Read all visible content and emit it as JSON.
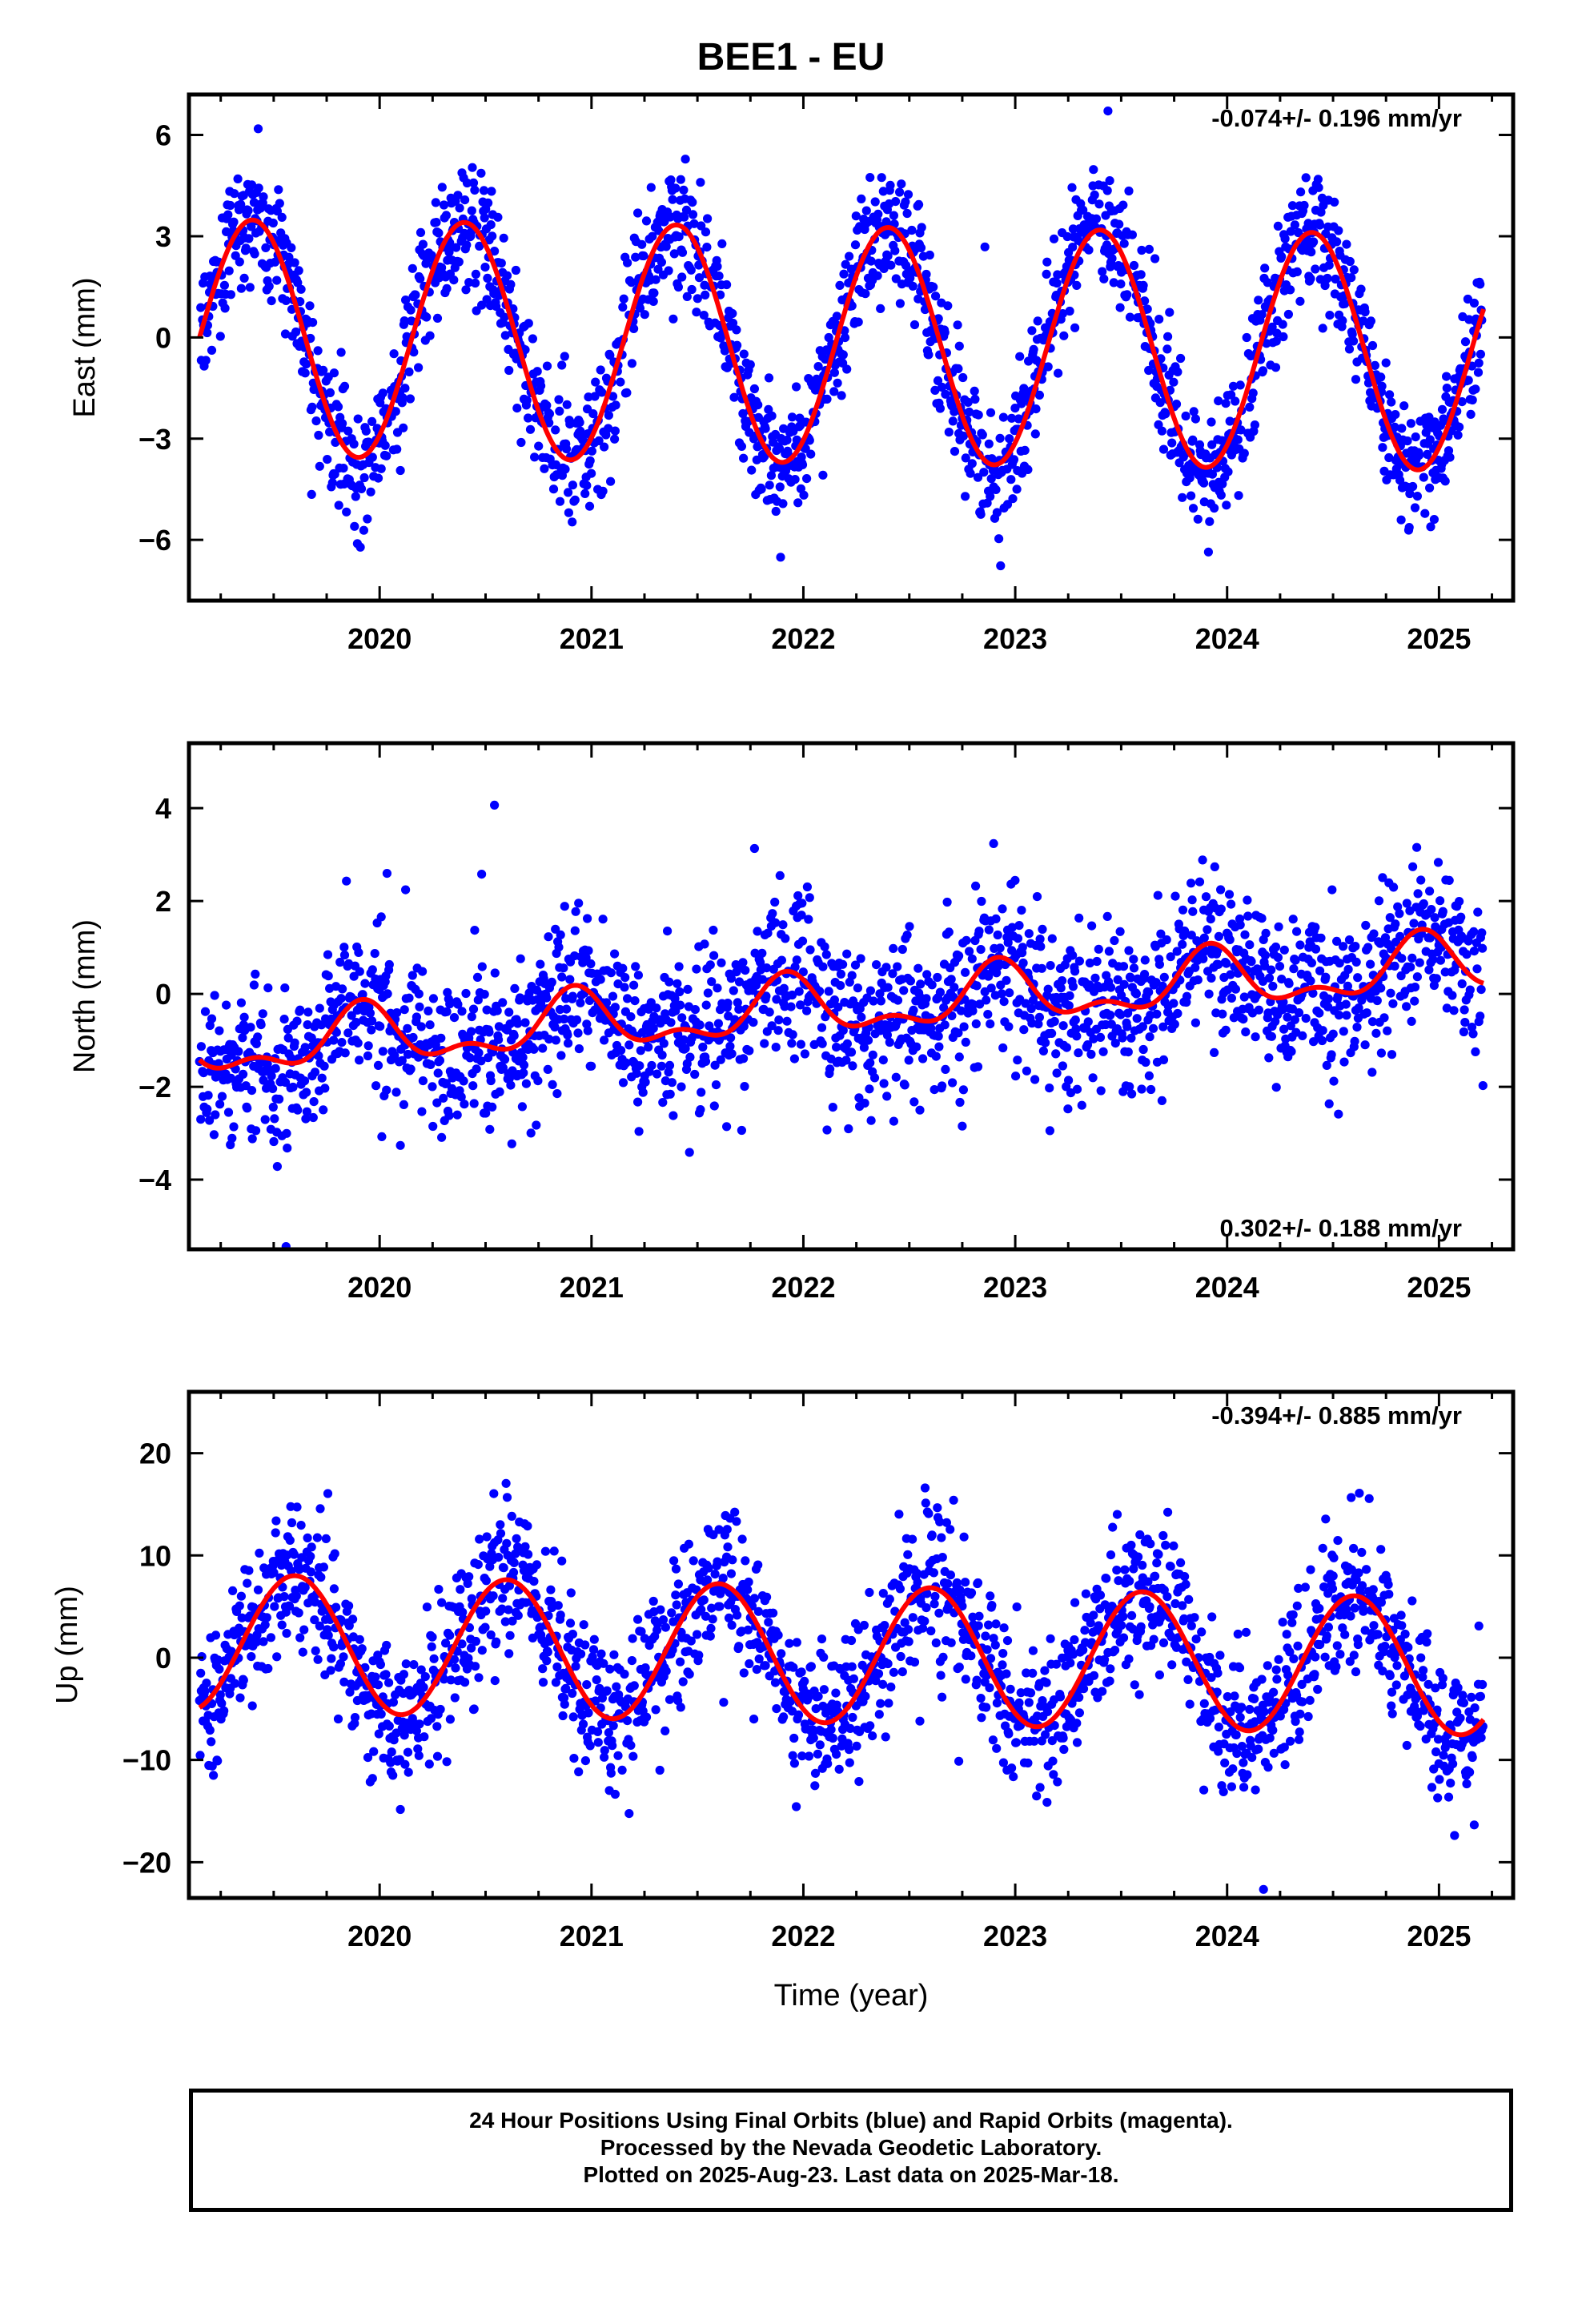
{
  "title": "BEE1 - EU",
  "colors": {
    "points": "#0000ff",
    "fit": "#ff0000",
    "axis": "#000000"
  },
  "chart_data": [
    {
      "type": "scatter",
      "name": "east",
      "xlabel": "",
      "ylabel": "East (mm)",
      "rate_label": "-0.074+/- 0.196 mm/yr",
      "rate_position": "top-right",
      "xlim": [
        2019.1,
        2025.35
      ],
      "ylim": [
        -7.8,
        7.2
      ],
      "xticks": [
        2020,
        2021,
        2022,
        2023,
        2024,
        2025
      ],
      "xtick_labels": [
        "2020",
        "2021",
        "2022",
        "2023",
        "2024",
        "2025"
      ],
      "yticks": [
        -6,
        -3,
        0,
        3,
        6
      ],
      "ytick_labels": [
        "−6",
        "−3",
        "0",
        "3",
        "6"
      ],
      "data_range": [
        2019.15,
        2025.21
      ],
      "fit": {
        "x0": 2019.15,
        "y0": 0.0,
        "trend": -0.074,
        "amplitude": 3.5,
        "phase_peak": 0.4
      },
      "noise_sd": 0.95
    },
    {
      "type": "scatter",
      "name": "north",
      "xlabel": "",
      "ylabel": "North (mm)",
      "rate_label": "0.302+/- 0.188 mm/yr",
      "rate_position": "bottom-right",
      "xlim": [
        2019.1,
        2025.35
      ],
      "ylim": [
        -5.5,
        5.4
      ],
      "xticks": [
        2020,
        2021,
        2022,
        2023,
        2024,
        2025
      ],
      "xtick_labels": [
        "2020",
        "2021",
        "2022",
        "2023",
        "2024",
        "2025"
      ],
      "yticks": [
        -4,
        -2,
        0,
        2,
        4
      ],
      "ytick_labels": [
        "−4",
        "−2",
        "0",
        "2",
        "4"
      ],
      "data_range": [
        2019.15,
        2025.21
      ],
      "fit": {
        "x0": 2019.15,
        "y0": -1.2,
        "trend": 0.302,
        "amplitude": 0.55,
        "phase_peak": 0.92,
        "semi_amplitude": 0.3
      },
      "noise_sd": 0.85
    },
    {
      "type": "scatter",
      "name": "up",
      "xlabel": "Time (year)",
      "ylabel": "Up (mm)",
      "rate_label": "-0.394+/- 0.885 mm/yr",
      "rate_position": "top-right",
      "xlim": [
        2019.1,
        2025.35
      ],
      "ylim": [
        -23.5,
        26.0
      ],
      "xticks": [
        2020,
        2021,
        2022,
        2023,
        2024,
        2025
      ],
      "xtick_labels": [
        "2020",
        "2021",
        "2022",
        "2023",
        "2024",
        "2025"
      ],
      "yticks": [
        -20,
        -10,
        0,
        10,
        20
      ],
      "ytick_labels": [
        "−20",
        "−10",
        "0",
        "10",
        "20"
      ],
      "data_range": [
        2019.15,
        2025.21
      ],
      "fit": {
        "x0": 2019.15,
        "y0": 1.5,
        "trend": -0.394,
        "amplitude": 6.7,
        "phase_peak": 0.6
      },
      "noise_sd": 3.6
    }
  ],
  "footer": {
    "line1": "24 Hour Positions Using Final Orbits (blue) and Rapid Orbits (magenta).",
    "line2": "Processed by the Nevada Geodetic Laboratory.",
    "line3": "Plotted on 2025-Aug-23. Last data on 2025-Mar-18."
  }
}
